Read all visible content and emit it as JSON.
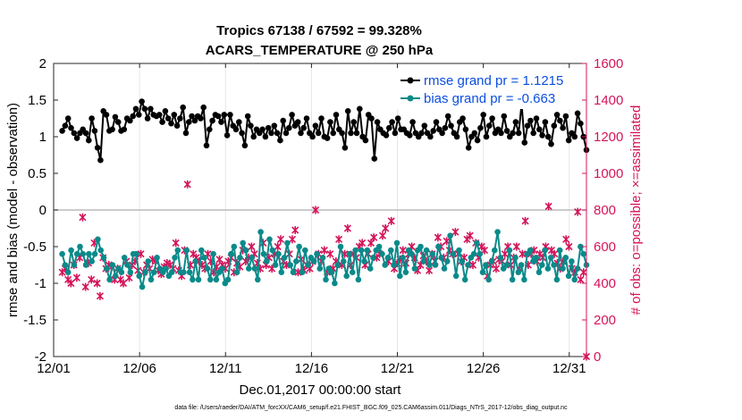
{
  "chart_data": {
    "type": "line",
    "title_line1": "Tropics 67138 / 67592 = 99.328%",
    "title_line2": "ACARS_TEMPERATURE @ 250 hPa",
    "xlabel": "Dec.01,2017 00:00:00 start",
    "ylabel": "rmse and bias (model - observation)",
    "ylabel_right": "# of obs: o=possible; ×=assimilated",
    "xlim": [
      0,
      31
    ],
    "ylim": [
      -2,
      2
    ],
    "ylim_right": [
      0,
      1600
    ],
    "x_ticks": [
      0,
      5,
      10,
      15,
      20,
      25,
      30
    ],
    "x_tick_labels": [
      "12/01",
      "12/06",
      "12/11",
      "12/16",
      "12/21",
      "12/26",
      "12/31"
    ],
    "y_ticks": [
      -2,
      -1.5,
      -1,
      -0.5,
      0,
      0.5,
      1,
      1.5,
      2
    ],
    "y_tick_labels": [
      "-2",
      "-1.5",
      "-1",
      "-0.5",
      "0",
      "0.5",
      "1",
      "1.5",
      "2"
    ],
    "y_ticks_right": [
      0,
      200,
      400,
      600,
      800,
      1000,
      1200,
      1400,
      1600
    ],
    "y_tick_labels_right": [
      "0",
      "200",
      "400",
      "600",
      "800",
      "1000",
      "1200",
      "1400",
      "1600"
    ],
    "colors": {
      "rmse": "#000000",
      "bias": "#0a8a8a",
      "obs": "#d4145a",
      "legend_text": "#0a4ee0",
      "zero_line": "#bbbbbb"
    },
    "legend": [
      "rmse grand pr = 1.1215",
      "bias grand pr = -0.663"
    ],
    "series": [
      {
        "name": "rmse",
        "values": [
          1.08,
          1.15,
          1.25,
          1.12,
          1.05,
          0.98,
          1.05,
          1.1,
          1.05,
          0.95,
          1.25,
          1.08,
          0.85,
          0.68,
          1.35,
          1.3,
          1.08,
          1.1,
          1.27,
          1.2,
          1.08,
          1.1,
          1.25,
          1.22,
          1.28,
          1.38,
          1.3,
          1.48,
          1.38,
          1.25,
          1.38,
          1.3,
          1.28,
          1.3,
          1.2,
          1.35,
          1.25,
          1.18,
          1.3,
          1.15,
          1.25,
          1.4,
          1.05,
          1.2,
          1.28,
          1.22,
          1.28,
          1.25,
          1.4,
          0.88,
          1.1,
          1.22,
          1.3,
          1.28,
          1.2,
          1.3,
          1.02,
          1.3,
          1.15,
          1.1,
          1.2,
          1.05,
          0.88,
          1.28,
          1.15,
          1.0,
          1.1,
          1.05,
          1.1,
          1.0,
          1.12,
          1.05,
          1.15,
          1.05,
          0.95,
          1.22,
          1.05,
          1.12,
          1.3,
          1.15,
          1.2,
          1.05,
          1.12,
          1.25,
          1.05,
          1.0,
          1.15,
          1.05,
          1.25,
          1.0,
          0.98,
          1.2,
          1.05,
          1.3,
          1.1,
          1.05,
          0.85,
          1.35,
          1.05,
          1.2,
          1.05,
          1.38,
          1.0,
          0.95,
          1.3,
          1.25,
          0.7,
          1.2,
          1.1,
          1.05,
          1.02,
          1.12,
          1.2,
          1.05,
          1.25,
          1.1,
          1.1,
          1.05,
          1.02,
          1.2,
          1.05,
          1.0,
          1.05,
          1.15,
          1.05,
          1.0,
          1.08,
          1.2,
          1.1,
          1.05,
          1.12,
          1.28,
          1.15,
          1.05,
          1.0,
          1.2,
          1.25,
          1.1,
          0.85,
          1.0,
          1.05,
          0.95,
          1.12,
          1.3,
          1.0,
          1.15,
          1.25,
          1.05,
          1.1,
          1.05,
          1.28,
          1.08,
          1.0,
          1.05,
          1.2,
          1.05,
          1.45,
          0.92,
          1.15,
          1.22,
          1.05,
          1.25,
          1.1,
          1.02,
          1.2,
          1.0,
          0.9,
          1.15,
          1.3,
          1.22,
          1.12,
          1.28,
          0.95,
          1.05,
          1.0,
          1.32,
          1.18,
          1.0,
          0.82
        ]
      },
      {
        "name": "bias",
        "values": [
          -0.6,
          -0.75,
          -0.85,
          -0.55,
          -0.75,
          -0.6,
          -0.5,
          -0.6,
          -0.75,
          -0.6,
          -0.7,
          -0.6,
          -0.4,
          -0.55,
          -0.65,
          -0.8,
          -0.95,
          -0.75,
          -0.9,
          -0.8,
          -0.85,
          -0.65,
          -0.75,
          -0.85,
          -0.6,
          -0.6,
          -0.9,
          -1.05,
          -0.85,
          -0.7,
          -0.95,
          -0.85,
          -0.65,
          -0.8,
          -0.85,
          -0.8,
          -0.9,
          -0.85,
          -0.65,
          -0.55,
          -0.85,
          -0.85,
          -0.55,
          -0.85,
          -0.95,
          -0.7,
          -0.95,
          -0.55,
          -0.65,
          -0.8,
          -0.95,
          -0.6,
          -0.95,
          -0.85,
          -0.8,
          -1.0,
          -0.95,
          -0.6,
          -0.5,
          -0.85,
          -0.65,
          -0.45,
          -0.55,
          -0.8,
          -0.65,
          -0.8,
          -0.95,
          -0.3,
          -0.6,
          -0.7,
          -0.4,
          -0.55,
          -0.75,
          -0.6,
          -0.85,
          -0.65,
          -0.45,
          -0.75,
          -0.85,
          -0.7,
          -0.5,
          -0.85,
          -0.55,
          -0.75,
          -0.65,
          -0.7,
          -0.6,
          -0.8,
          -0.65,
          -0.95,
          -0.8,
          -0.85,
          -1.0,
          -0.75,
          -0.5,
          -0.7,
          -0.9,
          -0.6,
          -0.85,
          -0.55,
          -0.95,
          -0.55,
          -0.7,
          -0.55,
          -0.8,
          -0.65,
          -0.55,
          -0.5,
          -0.6,
          -0.75,
          -0.65,
          -0.55,
          -0.75,
          -0.45,
          -0.9,
          -0.65,
          -0.85,
          -0.55,
          -0.6,
          -0.8,
          -0.55,
          -0.5,
          -0.7,
          -0.55,
          -0.75,
          -0.6,
          -0.75,
          -0.5,
          -0.65,
          -0.8,
          -0.7,
          -0.35,
          -0.6,
          -0.9,
          -0.55,
          -0.7,
          -0.95,
          -0.75,
          -0.65,
          -0.6,
          -0.45,
          -0.6,
          -0.85,
          -0.75,
          -0.95,
          -0.7,
          -0.55,
          -0.3,
          -0.65,
          -0.8,
          -0.75,
          -0.55,
          -0.95,
          -0.65,
          -0.85,
          -0.75,
          -0.95,
          -0.6,
          -0.55,
          -0.7,
          -0.65,
          -0.85,
          -0.75,
          -0.55,
          -0.8,
          -0.65,
          -0.75,
          -0.95,
          -0.55,
          -0.8,
          -0.65,
          -0.9,
          -0.7,
          -0.95,
          -0.8,
          -0.5,
          -0.6,
          -0.75
        ]
      },
      {
        "name": "obs",
        "values": [
          460,
          480,
          420,
          400,
          500,
          430,
          540,
          760,
          380,
          510,
          420,
          620,
          400,
          330,
          540,
          480,
          500,
          490,
          420,
          480,
          420,
          400,
          520,
          430,
          500,
          520,
          470,
          560,
          460,
          500,
          480,
          530,
          520,
          470,
          450,
          490,
          510,
          500,
          480,
          620,
          470,
          440,
          580,
          940,
          500,
          560,
          540,
          520,
          500,
          480,
          560,
          520,
          460,
          490,
          530,
          500,
          480,
          520,
          540,
          460,
          510,
          490,
          580,
          520,
          540,
          600,
          560,
          510,
          480,
          620,
          500,
          540,
          480,
          560,
          600,
          640,
          520,
          500,
          560,
          640,
          690,
          460,
          530,
          470,
          500,
          480,
          520,
          800,
          560,
          520,
          580,
          460,
          560,
          480,
          520,
          640,
          500,
          560,
          700,
          500,
          560,
          540,
          600,
          620,
          500,
          560,
          620,
          650,
          540,
          560,
          660,
          700,
          520,
          740,
          480,
          510,
          530,
          580,
          510,
          560,
          600,
          540,
          470,
          500,
          550,
          520,
          470,
          560,
          520,
          650,
          600,
          540,
          630,
          580,
          560,
          680,
          560,
          520,
          540,
          640,
          660,
          500,
          620,
          540,
          600,
          580,
          440,
          500,
          520,
          480,
          530,
          520,
          560,
          600,
          500,
          540,
          600,
          480,
          560,
          740,
          500,
          560,
          580,
          520,
          560,
          540,
          600,
          820,
          580,
          560,
          510,
          480,
          520,
          640,
          600,
          480,
          460,
          790,
          420,
          460,
          0
        ]
      }
    ],
    "footer": "data file: /Users/raeder/DAI/ATM_forcXX/CAM6_setup/f.e21.FHIST_BGC.f09_025.CAM6assim.011/Diags_NTrS_2017-12/obs_diag_output.nc"
  }
}
